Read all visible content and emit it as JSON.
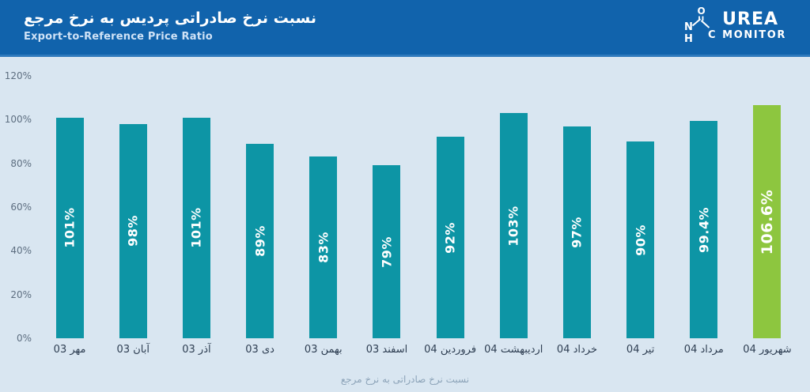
{
  "header": {
    "title": "نسبت نرخ صادراتی پردیس به نرخ مرجع",
    "subtitle": "Export-to-Reference Price Ratio",
    "logo": {
      "brand_top": "UREA",
      "brand_bottom": "MONITOR",
      "molecule_atoms": {
        "n": "N",
        "h": "H",
        "o": "O",
        "c": "C"
      }
    }
  },
  "chart_data": {
    "type": "bar",
    "title": "نسبت نرخ صادراتی پردیس به نرخ مرجع",
    "subtitle": "Export-to-Reference Price Ratio",
    "categories": [
      "مهر 03",
      "آبان 03",
      "آذر 03",
      "دی 03",
      "بهمن 03",
      "اسفند 03",
      "فروردین 04",
      "اردیبهشت 04",
      "خرداد 04",
      "تیر 04",
      "مرداد 04",
      "شهریور 04"
    ],
    "values": [
      101,
      98,
      101,
      89,
      83,
      79,
      92,
      103,
      97,
      90,
      99.4,
      106.6
    ],
    "bar_labels": [
      "101%",
      "98%",
      "101%",
      "89%",
      "83%",
      "79%",
      "92%",
      "103%",
      "97%",
      "90%",
      "99.4%",
      "106.6%"
    ],
    "yticks": [
      "0%",
      "20%",
      "40%",
      "60%",
      "80%",
      "100%",
      "120%"
    ],
    "ylim": [
      0,
      120
    ],
    "grid": false,
    "legend": false,
    "highlight_index": 11,
    "caption": "نسبت نرخ صادراتی به نرخ مرجع"
  },
  "colors": {
    "header_bg": "#1163ac",
    "header_edge": "#2f7abd",
    "page_bg": "#d9e6f1",
    "bar": "#0d95a5",
    "highlight": "#8dc63f",
    "bar_label": "#ffffff",
    "axis_text": "#5d6e80",
    "month_text": "#2e3e52",
    "caption_text": "#8ca3b8"
  }
}
